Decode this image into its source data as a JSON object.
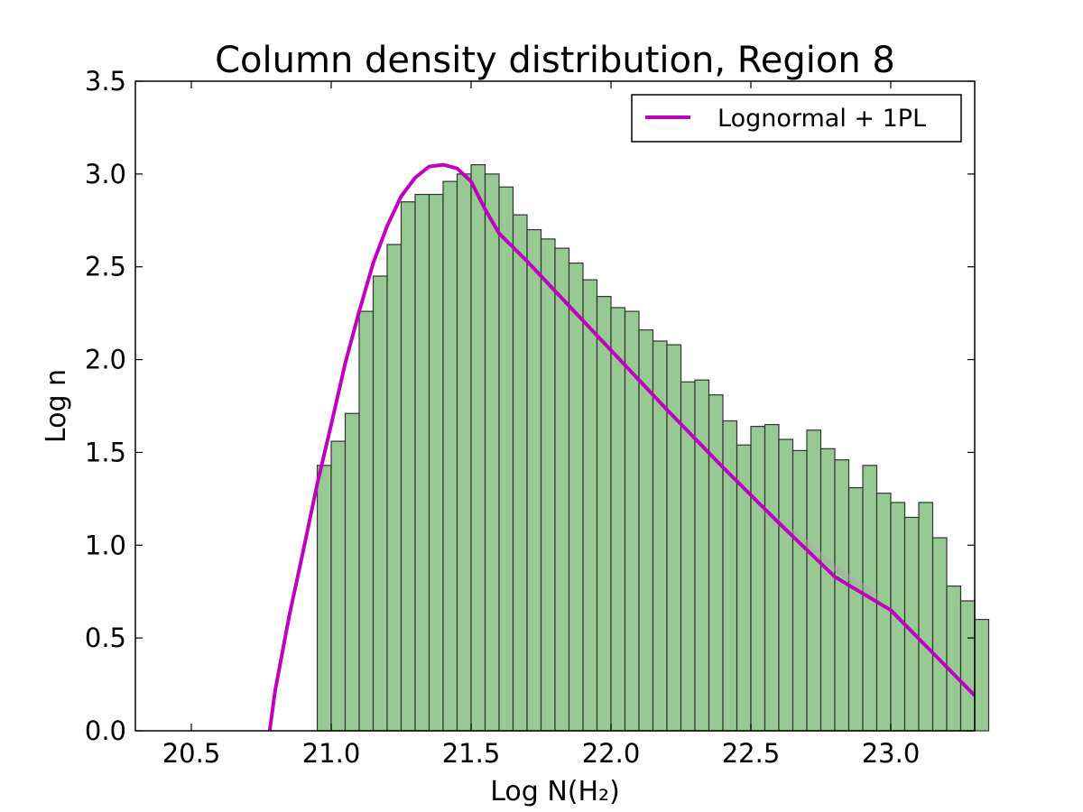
{
  "chart_data": {
    "type": "bar",
    "title": "Column density distribution, Region 8",
    "xlabel": "Log N(H₂)",
    "ylabel": "Log n",
    "xlim": [
      20.3,
      23.3
    ],
    "ylim": [
      0.0,
      3.5
    ],
    "x_ticks": [
      20.5,
      21.0,
      21.5,
      22.0,
      22.5,
      23.0
    ],
    "x_tick_labels": [
      "20.5",
      "21.0",
      "21.5",
      "22.0",
      "22.5",
      "23.0"
    ],
    "y_ticks": [
      0.0,
      0.5,
      1.0,
      1.5,
      2.0,
      2.5,
      3.0,
      3.5
    ],
    "y_tick_labels": [
      "0.0",
      "0.5",
      "1.0",
      "1.5",
      "2.0",
      "2.5",
      "3.0",
      "3.5"
    ],
    "grid": false,
    "legend_placement": "top-right",
    "histogram": {
      "bin_start": 20.95,
      "bin_width": 0.05,
      "values": [
        1.43,
        1.56,
        1.71,
        2.26,
        2.45,
        2.62,
        2.85,
        2.89,
        2.89,
        2.96,
        3.0,
        3.05,
        3.0,
        2.93,
        2.78,
        2.7,
        2.65,
        2.6,
        2.52,
        2.43,
        2.34,
        2.28,
        2.26,
        2.16,
        2.1,
        2.08,
        1.88,
        1.89,
        1.81,
        1.67,
        1.54,
        1.64,
        1.65,
        1.57,
        1.51,
        1.62,
        1.52,
        1.46,
        1.31,
        1.43,
        1.28,
        1.23,
        1.15,
        1.23,
        1.04,
        0.78,
        0.7,
        0.6
      ],
      "fill_color": "#96ca92",
      "edge_color": "#333333"
    },
    "series": [
      {
        "name": "Lognormal + 1PL",
        "color": "#bf00bf",
        "x": [
          20.78,
          20.8,
          20.85,
          20.9,
          20.95,
          21.0,
          21.05,
          21.1,
          21.15,
          21.2,
          21.25,
          21.3,
          21.35,
          21.4,
          21.45,
          21.5,
          21.55,
          21.6,
          21.7,
          21.8,
          22.0,
          22.2,
          22.4,
          22.6,
          22.8,
          23.0,
          23.3
        ],
        "y": [
          0.0,
          0.22,
          0.62,
          0.97,
          1.33,
          1.65,
          1.98,
          2.26,
          2.52,
          2.72,
          2.88,
          2.98,
          3.04,
          3.05,
          3.03,
          2.96,
          2.81,
          2.68,
          2.53,
          2.37,
          2.05,
          1.73,
          1.42,
          1.12,
          0.83,
          0.65,
          0.19
        ]
      }
    ],
    "fit_band": {
      "color": "#a9a9a9",
      "x_start": 22.55,
      "x_end": 22.95,
      "upper": [
        1.2,
        1.05,
        0.88,
        0.74
      ],
      "lower": [
        1.16,
        1.0,
        0.84,
        0.7
      ]
    }
  }
}
